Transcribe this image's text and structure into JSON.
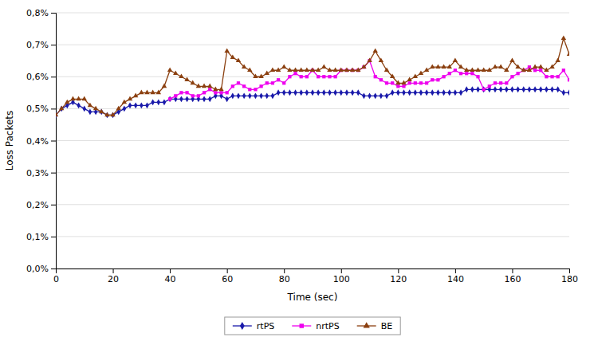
{
  "chart_data": {
    "type": "line",
    "xlabel": "Time (sec)",
    "ylabel": "Loss Packets",
    "x": [
      0,
      2,
      4,
      6,
      8,
      10,
      12,
      14,
      16,
      18,
      20,
      22,
      24,
      26,
      28,
      30,
      32,
      34,
      36,
      38,
      40,
      42,
      44,
      46,
      48,
      50,
      52,
      54,
      56,
      58,
      60,
      62,
      64,
      66,
      68,
      70,
      72,
      74,
      76,
      78,
      80,
      82,
      84,
      86,
      88,
      90,
      92,
      94,
      96,
      98,
      100,
      102,
      104,
      106,
      108,
      110,
      112,
      114,
      116,
      118,
      120,
      122,
      124,
      126,
      128,
      130,
      132,
      134,
      136,
      138,
      140,
      142,
      144,
      146,
      148,
      150,
      152,
      154,
      156,
      158,
      160,
      162,
      164,
      166,
      168,
      170,
      172,
      174,
      176,
      178,
      180
    ],
    "series": [
      {
        "name": "rtPS",
        "color": "#1a1aaa",
        "marker": "diamond",
        "values": [
          0.0048,
          0.005,
          0.0051,
          0.0052,
          0.0051,
          0.005,
          0.0049,
          0.0049,
          0.0049,
          0.0048,
          0.0048,
          0.0049,
          0.005,
          0.0051,
          0.0051,
          0.0051,
          0.0051,
          0.0052,
          0.0052,
          0.0052,
          0.0053,
          0.0053,
          0.0053,
          0.0053,
          0.0053,
          0.0053,
          0.0053,
          0.0053,
          0.0054,
          0.0054,
          0.0053,
          0.0054,
          0.0054,
          0.0054,
          0.0054,
          0.0054,
          0.0054,
          0.0054,
          0.0054,
          0.0055,
          0.0055,
          0.0055,
          0.0055,
          0.0055,
          0.0055,
          0.0055,
          0.0055,
          0.0055,
          0.0055,
          0.0055,
          0.0055,
          0.0055,
          0.0055,
          0.0055,
          0.0054,
          0.0054,
          0.0054,
          0.0054,
          0.0054,
          0.0055,
          0.0055,
          0.0055,
          0.0055,
          0.0055,
          0.0055,
          0.0055,
          0.0055,
          0.0055,
          0.0055,
          0.0055,
          0.0055,
          0.0055,
          0.0056,
          0.0056,
          0.0056,
          0.0056,
          0.0056,
          0.0056,
          0.0056,
          0.0056,
          0.0056,
          0.0056,
          0.0056,
          0.0056,
          0.0056,
          0.0056,
          0.0056,
          0.0056,
          0.0056,
          0.0055,
          0.0055
        ]
      },
      {
        "name": "nrtPS",
        "color": "#ee00ee",
        "marker": "square",
        "values": [
          null,
          null,
          null,
          null,
          null,
          null,
          null,
          null,
          null,
          null,
          null,
          null,
          null,
          null,
          null,
          null,
          null,
          null,
          null,
          null,
          0.0053,
          0.0054,
          0.0055,
          0.0055,
          0.0054,
          0.0054,
          0.0055,
          0.0056,
          0.0055,
          0.0055,
          0.0055,
          0.0057,
          0.0058,
          0.0057,
          0.0056,
          0.0056,
          0.0057,
          0.0058,
          0.0058,
          0.0059,
          0.0058,
          0.006,
          0.0061,
          0.006,
          0.006,
          0.0062,
          0.006,
          0.006,
          0.006,
          0.006,
          0.0062,
          0.0062,
          0.0062,
          0.0062,
          0.0063,
          0.0065,
          0.006,
          0.0059,
          0.0058,
          0.0058,
          0.0057,
          0.0057,
          0.0058,
          0.0058,
          0.0058,
          0.0058,
          0.0059,
          0.0059,
          0.006,
          0.0061,
          0.0062,
          0.0061,
          0.0061,
          0.0061,
          0.006,
          0.0056,
          0.0057,
          0.0058,
          0.0058,
          0.0058,
          0.006,
          0.0061,
          0.0062,
          0.0063,
          0.0062,
          0.0062,
          0.006,
          0.006,
          0.006,
          0.0062,
          0.0059
        ]
      },
      {
        "name": "BE",
        "color": "#8B4010",
        "marker": "triangle",
        "values": [
          0.0048,
          0.005,
          0.0052,
          0.0053,
          0.0053,
          0.0053,
          0.0051,
          0.005,
          0.0049,
          0.0048,
          0.0048,
          0.005,
          0.0052,
          0.0053,
          0.0054,
          0.0055,
          0.0055,
          0.0055,
          0.0055,
          0.0057,
          0.0062,
          0.0061,
          0.006,
          0.0059,
          0.0058,
          0.0057,
          0.0057,
          0.0057,
          0.0056,
          0.0056,
          0.0068,
          0.0066,
          0.0065,
          0.0063,
          0.0062,
          0.006,
          0.006,
          0.0061,
          0.0062,
          0.0062,
          0.0063,
          0.0062,
          0.0062,
          0.0062,
          0.0062,
          0.0062,
          0.0062,
          0.0063,
          0.0062,
          0.0062,
          0.0062,
          0.0062,
          0.0062,
          0.0062,
          0.0063,
          0.0065,
          0.0068,
          0.0065,
          0.0062,
          0.006,
          0.0058,
          0.0058,
          0.0059,
          0.006,
          0.0061,
          0.0062,
          0.0063,
          0.0063,
          0.0063,
          0.0063,
          0.0065,
          0.0063,
          0.0062,
          0.0062,
          0.0062,
          0.0062,
          0.0062,
          0.0063,
          0.0063,
          0.0062,
          0.0065,
          0.0063,
          0.0062,
          0.0062,
          0.0063,
          0.0063,
          0.0062,
          0.0063,
          0.0065,
          0.0072,
          0.0067
        ]
      }
    ],
    "xlim": [
      0,
      180
    ],
    "xticks": [
      0,
      20,
      40,
      60,
      80,
      100,
      120,
      140,
      160,
      180
    ],
    "ylim": [
      0.0,
      0.008
    ],
    "yticks": [
      {
        "value": 0.0,
        "label": "0,0%"
      },
      {
        "value": 0.001,
        "label": "0,1%"
      },
      {
        "value": 0.002,
        "label": "0,2%"
      },
      {
        "value": 0.003,
        "label": "0,3%"
      },
      {
        "value": 0.004,
        "label": "0,4%"
      },
      {
        "value": 0.005,
        "label": "0,5%"
      },
      {
        "value": 0.006,
        "label": "0,6%"
      },
      {
        "value": 0.007,
        "label": "0,7%"
      },
      {
        "value": 0.008,
        "label": "0,8%"
      }
    ],
    "grid": "y",
    "legend": "bottom"
  }
}
